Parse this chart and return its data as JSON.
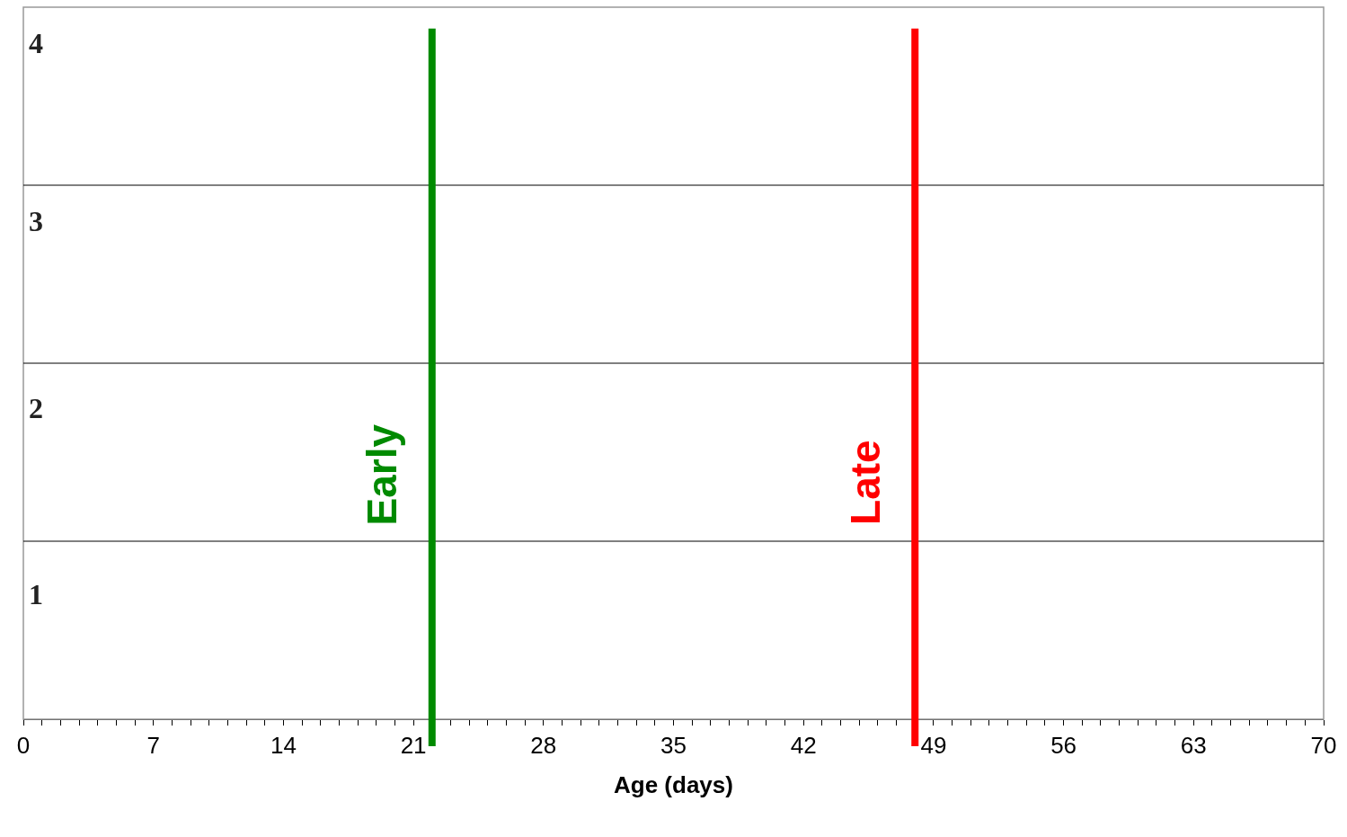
{
  "chart_data": {
    "type": "line",
    "xlabel": "Age (days)",
    "xlim": [
      0,
      70
    ],
    "xticks": [
      0,
      {
        "value": 1,
        "label": null
      },
      {
        "value": 2,
        "label": null
      },
      {
        "value": 3,
        "label": null
      },
      {
        "value": 4,
        "label": null
      },
      {
        "value": 5,
        "label": null
      },
      {
        "value": 6,
        "label": null
      },
      7,
      {
        "value": 8,
        "label": null
      },
      {
        "value": 9,
        "label": null
      },
      {
        "value": 10,
        "label": null
      },
      {
        "value": 11,
        "label": null
      },
      {
        "value": 12,
        "label": null
      },
      {
        "value": 13,
        "label": null
      },
      14,
      {
        "value": 15,
        "label": null
      },
      {
        "value": 16,
        "label": null
      },
      {
        "value": 17,
        "label": null
      },
      {
        "value": 18,
        "label": null
      },
      {
        "value": 19,
        "label": null
      },
      {
        "value": 20,
        "label": null
      },
      21,
      {
        "value": 22,
        "label": null
      },
      {
        "value": 23,
        "label": null
      },
      {
        "value": 24,
        "label": null
      },
      {
        "value": 25,
        "label": null
      },
      {
        "value": 26,
        "label": null
      },
      {
        "value": 27,
        "label": null
      },
      28,
      {
        "value": 29,
        "label": null
      },
      {
        "value": 30,
        "label": null
      },
      {
        "value": 31,
        "label": null
      },
      {
        "value": 32,
        "label": null
      },
      {
        "value": 33,
        "label": null
      },
      {
        "value": 34,
        "label": null
      },
      35,
      {
        "value": 36,
        "label": null
      },
      {
        "value": 37,
        "label": null
      },
      {
        "value": 38,
        "label": null
      },
      {
        "value": 39,
        "label": null
      },
      {
        "value": 40,
        "label": null
      },
      {
        "value": 41,
        "label": null
      },
      42,
      {
        "value": 43,
        "label": null
      },
      {
        "value": 44,
        "label": null
      },
      {
        "value": 45,
        "label": null
      },
      {
        "value": 46,
        "label": null
      },
      {
        "value": 47,
        "label": null
      },
      {
        "value": 48,
        "label": null
      },
      49,
      {
        "value": 50,
        "label": null
      },
      {
        "value": 51,
        "label": null
      },
      {
        "value": 52,
        "label": null
      },
      {
        "value": 53,
        "label": null
      },
      {
        "value": 54,
        "label": null
      },
      {
        "value": 55,
        "label": null
      },
      56,
      {
        "value": 57,
        "label": null
      },
      {
        "value": 58,
        "label": null
      },
      {
        "value": 59,
        "label": null
      },
      {
        "value": 60,
        "label": null
      },
      {
        "value": 61,
        "label": null
      },
      {
        "value": 62,
        "label": null
      },
      63,
      {
        "value": 64,
        "label": null
      },
      {
        "value": 65,
        "label": null
      },
      {
        "value": 66,
        "label": null
      },
      {
        "value": 67,
        "label": null
      },
      {
        "value": 68,
        "label": null
      },
      {
        "value": 69,
        "label": null
      },
      70
    ],
    "ylim": [
      0,
      4
    ],
    "yticks": [
      {
        "value": 0.7,
        "label": "1"
      },
      {
        "value": 1.75,
        "label": "2"
      },
      {
        "value": 2.8,
        "label": "3"
      },
      {
        "value": 3.8,
        "label": "4"
      }
    ],
    "ref_lines": [
      {
        "axis": "y",
        "value": 1,
        "color": "#000000"
      },
      {
        "axis": "y",
        "value": 2,
        "color": "#000000"
      },
      {
        "axis": "y",
        "value": 3,
        "color": "#000000"
      },
      {
        "axis": "x",
        "value": 22,
        "label": "Early",
        "color": "#008a00"
      },
      {
        "axis": "x",
        "value": 48,
        "label": "Late",
        "color": "#ff0000"
      }
    ]
  }
}
